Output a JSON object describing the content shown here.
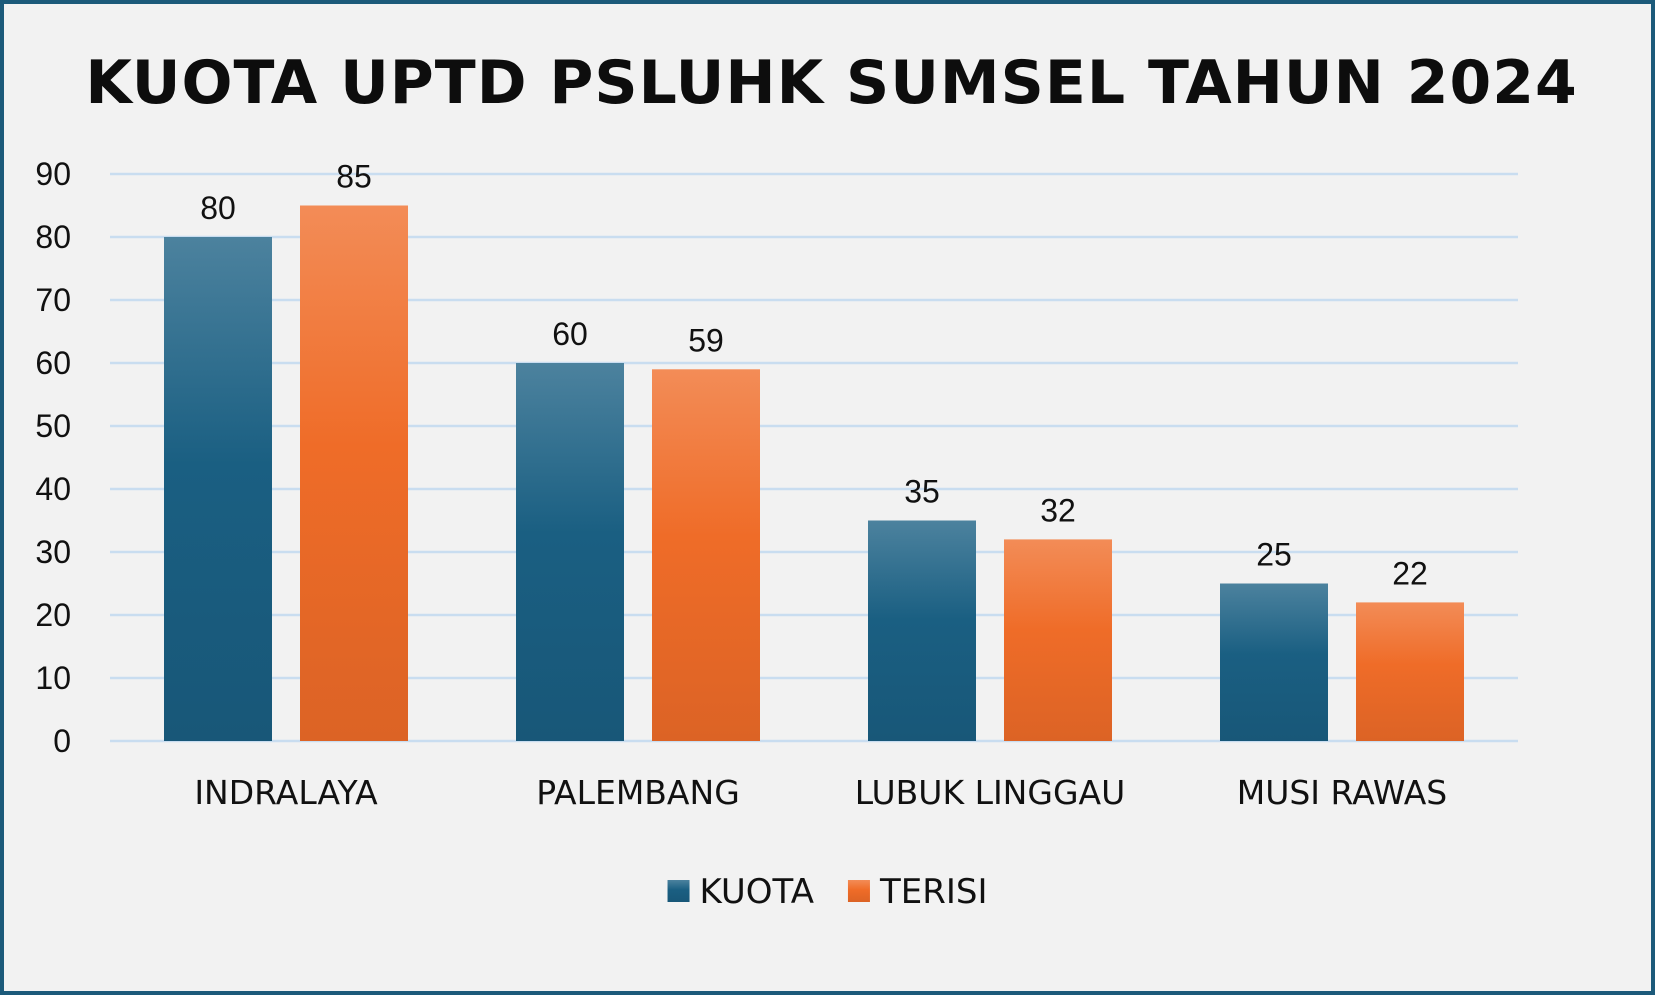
{
  "chart_data": {
    "type": "bar",
    "title": "KUOTA UPTD PSLUHK SUMSEL TAHUN 2024",
    "categories": [
      "INDRALAYA",
      "PALEMBANG",
      "LUBUK LINGGAU",
      "MUSI RAWAS"
    ],
    "series": [
      {
        "name": "KUOTA",
        "values": [
          80,
          60,
          35,
          25
        ],
        "color": "#1a5f82"
      },
      {
        "name": "TERISI",
        "values": [
          85,
          59,
          32,
          22
        ],
        "color": "#ef6c28"
      }
    ],
    "ylim": [
      0,
      90
    ],
    "yticks": [
      0,
      10,
      20,
      30,
      40,
      50,
      60,
      70,
      80,
      90
    ],
    "xlabel": "",
    "ylabel": "",
    "grid": true,
    "legend": "bottom",
    "data_labels": true
  }
}
